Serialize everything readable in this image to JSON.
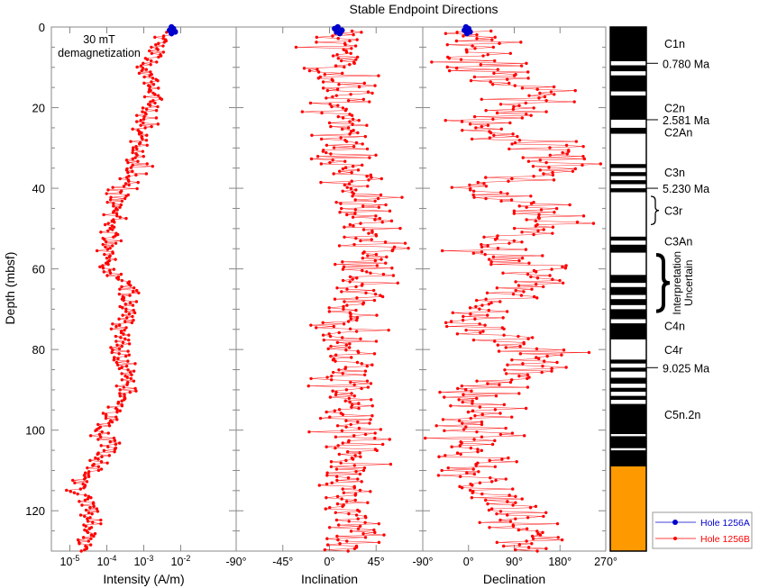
{
  "chart_data": {
    "title": "Stable Endpoint Directions",
    "type": "scatter",
    "y_axis": {
      "label": "Depth (mbsf)",
      "range": [
        0,
        130
      ],
      "ticks": [
        "0",
        "20",
        "40",
        "60",
        "80",
        "100",
        "120"
      ],
      "tick_values": [
        0,
        20,
        40,
        60,
        80,
        100,
        120
      ]
    },
    "annotation": "30 mT demagnetization",
    "panels": [
      {
        "key": "intensity",
        "xlabel": "Intensity (A/m)",
        "scale": "log",
        "xlim": [
          -5.5,
          -0.5
        ],
        "tick_labels": [
          {
            "base": "10",
            "exp": "-5",
            "value": -5
          },
          {
            "base": "10",
            "exp": "-4",
            "value": -4
          },
          {
            "base": "10",
            "exp": "-3",
            "value": -3
          },
          {
            "base": "10",
            "exp": "-2",
            "value": -2
          }
        ]
      },
      {
        "key": "inclination",
        "xlabel": "Inclination",
        "xlim": [
          -90,
          90
        ],
        "tick_labels": [
          {
            "text": "-90°",
            "value": -90
          },
          {
            "text": "-45°",
            "value": -45
          },
          {
            "text": "0°",
            "value": 0
          },
          {
            "text": "45°",
            "value": 45
          }
        ]
      },
      {
        "key": "declination",
        "xlabel": "Declination",
        "xlim": [
          -90,
          270
        ],
        "tick_labels": [
          {
            "text": "-90°",
            "value": -90
          },
          {
            "text": "0°",
            "value": 0
          },
          {
            "text": "90°",
            "value": 90
          },
          {
            "text": "180°",
            "value": 180
          },
          {
            "text": "270°",
            "value": 270
          }
        ]
      }
    ],
    "series": [
      {
        "name": "Hole 1256A",
        "color": "#0000cc",
        "points": [
          {
            "depth": 0.0,
            "intensity": -2.25,
            "inclination": 8,
            "declination": -5
          },
          {
            "depth": 0.4,
            "intensity": -2.2,
            "inclination": 5,
            "declination": 0
          },
          {
            "depth": 0.8,
            "intensity": -2.3,
            "inclination": 12,
            "declination": -8
          },
          {
            "depth": 1.2,
            "intensity": -2.15,
            "inclination": 7,
            "declination": 3
          },
          {
            "depth": 1.6,
            "intensity": -2.25,
            "inclination": 10,
            "declination": -3
          }
        ]
      },
      {
        "name": "Hole 1256B",
        "color": "#ff0000",
        "profile": [
          {
            "depth": 1,
            "intensity": -2.3,
            "inclination": 10,
            "declination": 0
          },
          {
            "depth": 5,
            "intensity": -2.6,
            "inclination": 12,
            "declination": 10
          },
          {
            "depth": 10,
            "intensity": -3.0,
            "inclination": 10,
            "declination": 20
          },
          {
            "depth": 15,
            "intensity": -2.8,
            "inclination": 12,
            "declination": 120
          },
          {
            "depth": 20,
            "intensity": -2.8,
            "inclination": 10,
            "declination": 140
          },
          {
            "depth": 25,
            "intensity": -3.1,
            "inclination": 12,
            "declination": 20
          },
          {
            "depth": 30,
            "intensity": -3.1,
            "inclination": 10,
            "declination": 170
          },
          {
            "depth": 35,
            "intensity": -3.2,
            "inclination": 15,
            "declination": 180
          },
          {
            "depth": 40,
            "intensity": -3.5,
            "inclination": 20,
            "declination": 10
          },
          {
            "depth": 45,
            "intensity": -3.8,
            "inclination": 35,
            "declination": 150
          },
          {
            "depth": 50,
            "intensity": -3.9,
            "inclination": 40,
            "declination": 150
          },
          {
            "depth": 55,
            "intensity": -3.9,
            "inclination": 40,
            "declination": 20
          },
          {
            "depth": 60,
            "intensity": -4.0,
            "inclination": 35,
            "declination": 120
          },
          {
            "depth": 65,
            "intensity": -3.4,
            "inclination": 20,
            "declination": 120
          },
          {
            "depth": 70,
            "intensity": -3.5,
            "inclination": 15,
            "declination": 10
          },
          {
            "depth": 75,
            "intensity": -3.6,
            "inclination": 15,
            "declination": 10
          },
          {
            "depth": 80,
            "intensity": -3.7,
            "inclination": 15,
            "declination": 160
          },
          {
            "depth": 85,
            "intensity": -3.4,
            "inclination": 15,
            "declination": 130
          },
          {
            "depth": 90,
            "intensity": -3.6,
            "inclination": 20,
            "declination": 20
          },
          {
            "depth": 95,
            "intensity": -3.8,
            "inclination": 20,
            "declination": 20
          },
          {
            "depth": 100,
            "intensity": -4.0,
            "inclination": 20,
            "declination": 20
          },
          {
            "depth": 105,
            "intensity": -4.0,
            "inclination": 25,
            "declination": 20
          },
          {
            "depth": 110,
            "intensity": -4.4,
            "inclination": 20,
            "declination": 20
          },
          {
            "depth": 115,
            "intensity": -4.8,
            "inclination": 15,
            "declination": 40
          },
          {
            "depth": 120,
            "intensity": -4.5,
            "inclination": 20,
            "declination": 100
          },
          {
            "depth": 125,
            "intensity": -4.4,
            "inclination": 20,
            "declination": 110
          },
          {
            "depth": 130,
            "intensity": -4.6,
            "inclination": 20,
            "declination": 100
          }
        ],
        "spread": {
          "intensity": 0.35,
          "inclination": 28,
          "declination": 70
        }
      }
    ],
    "legend": {
      "placement": "bottom-right",
      "entries": [
        "Hole 1256A",
        "Hole 1256B"
      ]
    },
    "polarity_column": {
      "normal_color": "#000000",
      "reversed_color": "#ffffff",
      "uncertain_color": "#ff9900",
      "blocks": [
        {
          "top": 0,
          "bottom": 8.5,
          "polarity": "normal"
        },
        {
          "top": 8.5,
          "bottom": 9.5,
          "polarity": "reversed"
        },
        {
          "top": 9.5,
          "bottom": 11.0,
          "polarity": "normal"
        },
        {
          "top": 11.0,
          "bottom": 12.0,
          "polarity": "reversed"
        },
        {
          "top": 12.0,
          "bottom": 16.0,
          "polarity": "normal"
        },
        {
          "top": 16.0,
          "bottom": 17.0,
          "polarity": "reversed"
        },
        {
          "top": 17.0,
          "bottom": 23.0,
          "polarity": "normal"
        },
        {
          "top": 23.0,
          "bottom": 25.0,
          "polarity": "reversed"
        },
        {
          "top": 25.0,
          "bottom": 26.5,
          "polarity": "normal"
        },
        {
          "top": 26.5,
          "bottom": 34.0,
          "polarity": "reversed"
        },
        {
          "top": 34.0,
          "bottom": 35.0,
          "polarity": "normal"
        },
        {
          "top": 35.0,
          "bottom": 36.0,
          "polarity": "reversed"
        },
        {
          "top": 36.0,
          "bottom": 37.0,
          "polarity": "normal"
        },
        {
          "top": 37.0,
          "bottom": 38.0,
          "polarity": "reversed"
        },
        {
          "top": 38.0,
          "bottom": 39.0,
          "polarity": "normal"
        },
        {
          "top": 39.0,
          "bottom": 40.0,
          "polarity": "reversed"
        },
        {
          "top": 40.0,
          "bottom": 41.0,
          "polarity": "normal"
        },
        {
          "top": 41.0,
          "bottom": 52.0,
          "polarity": "reversed"
        },
        {
          "top": 52.0,
          "bottom": 53.0,
          "polarity": "normal"
        },
        {
          "top": 53.0,
          "bottom": 54.0,
          "polarity": "reversed"
        },
        {
          "top": 54.0,
          "bottom": 56.0,
          "polarity": "normal"
        },
        {
          "top": 56.0,
          "bottom": 61.5,
          "polarity": "reversed"
        },
        {
          "top": 61.5,
          "bottom": 63.5,
          "polarity": "normal"
        },
        {
          "top": 63.5,
          "bottom": 64.5,
          "polarity": "reversed"
        },
        {
          "top": 64.5,
          "bottom": 66.5,
          "polarity": "normal"
        },
        {
          "top": 66.5,
          "bottom": 67.5,
          "polarity": "reversed"
        },
        {
          "top": 67.5,
          "bottom": 69.0,
          "polarity": "normal"
        },
        {
          "top": 69.0,
          "bottom": 70.0,
          "polarity": "reversed"
        },
        {
          "top": 70.0,
          "bottom": 72.5,
          "polarity": "normal"
        },
        {
          "top": 72.5,
          "bottom": 73.5,
          "polarity": "reversed"
        },
        {
          "top": 73.5,
          "bottom": 77.5,
          "polarity": "normal"
        },
        {
          "top": 77.5,
          "bottom": 82.5,
          "polarity": "reversed"
        },
        {
          "top": 82.5,
          "bottom": 83.5,
          "polarity": "normal"
        },
        {
          "top": 83.5,
          "bottom": 84.5,
          "polarity": "reversed"
        },
        {
          "top": 84.5,
          "bottom": 85.5,
          "polarity": "normal"
        },
        {
          "top": 85.5,
          "bottom": 87.0,
          "polarity": "reversed"
        },
        {
          "top": 87.0,
          "bottom": 88.5,
          "polarity": "normal"
        },
        {
          "top": 88.5,
          "bottom": 89.5,
          "polarity": "reversed"
        },
        {
          "top": 89.5,
          "bottom": 90.5,
          "polarity": "normal"
        },
        {
          "top": 90.5,
          "bottom": 91.5,
          "polarity": "reversed"
        },
        {
          "top": 91.5,
          "bottom": 92.5,
          "polarity": "normal"
        },
        {
          "top": 92.5,
          "bottom": 93.5,
          "polarity": "reversed"
        },
        {
          "top": 93.5,
          "bottom": 101.0,
          "polarity": "normal"
        },
        {
          "top": 101.0,
          "bottom": 101.5,
          "polarity": "reversed"
        },
        {
          "top": 101.5,
          "bottom": 104.5,
          "polarity": "normal"
        },
        {
          "top": 104.5,
          "bottom": 105.0,
          "polarity": "reversed"
        },
        {
          "top": 105.0,
          "bottom": 109.0,
          "polarity": "normal"
        },
        {
          "top": 109.0,
          "bottom": 130.0,
          "polarity": "uncertain"
        }
      ],
      "chron_labels": [
        {
          "text": "C1n",
          "depth": 4
        },
        {
          "text": "C2n",
          "depth": 20
        },
        {
          "text": "C2An",
          "depth": 26
        },
        {
          "text": "C3n",
          "depth": 36
        },
        {
          "text": "C3r",
          "depth": 45.5
        },
        {
          "text": "C3An",
          "depth": 53
        },
        {
          "text": "C4n",
          "depth": 74
        },
        {
          "text": "C4r",
          "depth": 80
        },
        {
          "text": "C5n.2n",
          "depth": 96
        }
      ],
      "age_labels": [
        {
          "text": "0.780 Ma",
          "depth": 9
        },
        {
          "text": "2.581 Ma",
          "depth": 23
        },
        {
          "text": "5.230 Ma",
          "depth": 40
        },
        {
          "text": "9.025 Ma",
          "depth": 84.5
        }
      ],
      "uncertain_note": {
        "lines": [
          "Interpretation",
          "Uncertain"
        ],
        "top": 56.5,
        "bottom": 70.5
      },
      "c3r_brace": {
        "top": 42,
        "bottom": 49
      }
    }
  }
}
